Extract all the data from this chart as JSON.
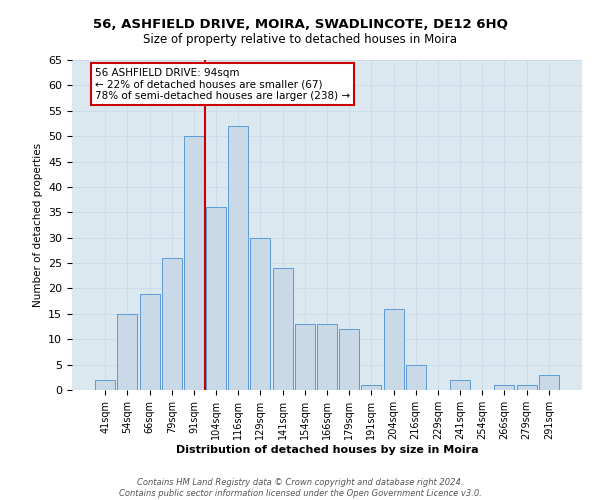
{
  "title": "56, ASHFIELD DRIVE, MOIRA, SWADLINCOTE, DE12 6HQ",
  "subtitle": "Size of property relative to detached houses in Moira",
  "xlabel": "Distribution of detached houses by size in Moira",
  "ylabel": "Number of detached properties",
  "footnote": "Contains HM Land Registry data © Crown copyright and database right 2024.\nContains public sector information licensed under the Open Government Licence v3.0.",
  "categories": [
    "41sqm",
    "54sqm",
    "66sqm",
    "79sqm",
    "91sqm",
    "104sqm",
    "116sqm",
    "129sqm",
    "141sqm",
    "154sqm",
    "166sqm",
    "179sqm",
    "191sqm",
    "204sqm",
    "216sqm",
    "229sqm",
    "241sqm",
    "254sqm",
    "266sqm",
    "279sqm",
    "291sqm"
  ],
  "values": [
    2,
    15,
    19,
    26,
    50,
    36,
    52,
    30,
    24,
    13,
    13,
    12,
    1,
    16,
    5,
    0,
    2,
    0,
    1,
    1,
    3
  ],
  "bar_color": "#c9d9e8",
  "bar_edge_color": "#5b9bd5",
  "red_line_index": 4,
  "annotation_title": "56 ASHFIELD DRIVE: 94sqm",
  "annotation_line1": "← 22% of detached houses are smaller (67)",
  "annotation_line2": "78% of semi-detached houses are larger (238) →",
  "annotation_box_color": "#ffffff",
  "annotation_border_color": "#cc0000",
  "red_line_color": "#cc0000",
  "ylim": [
    0,
    65
  ],
  "yticks": [
    0,
    5,
    10,
    15,
    20,
    25,
    30,
    35,
    40,
    45,
    50,
    55,
    60,
    65
  ],
  "grid_color": "#c8d8e8",
  "bg_color": "#dce8f0"
}
